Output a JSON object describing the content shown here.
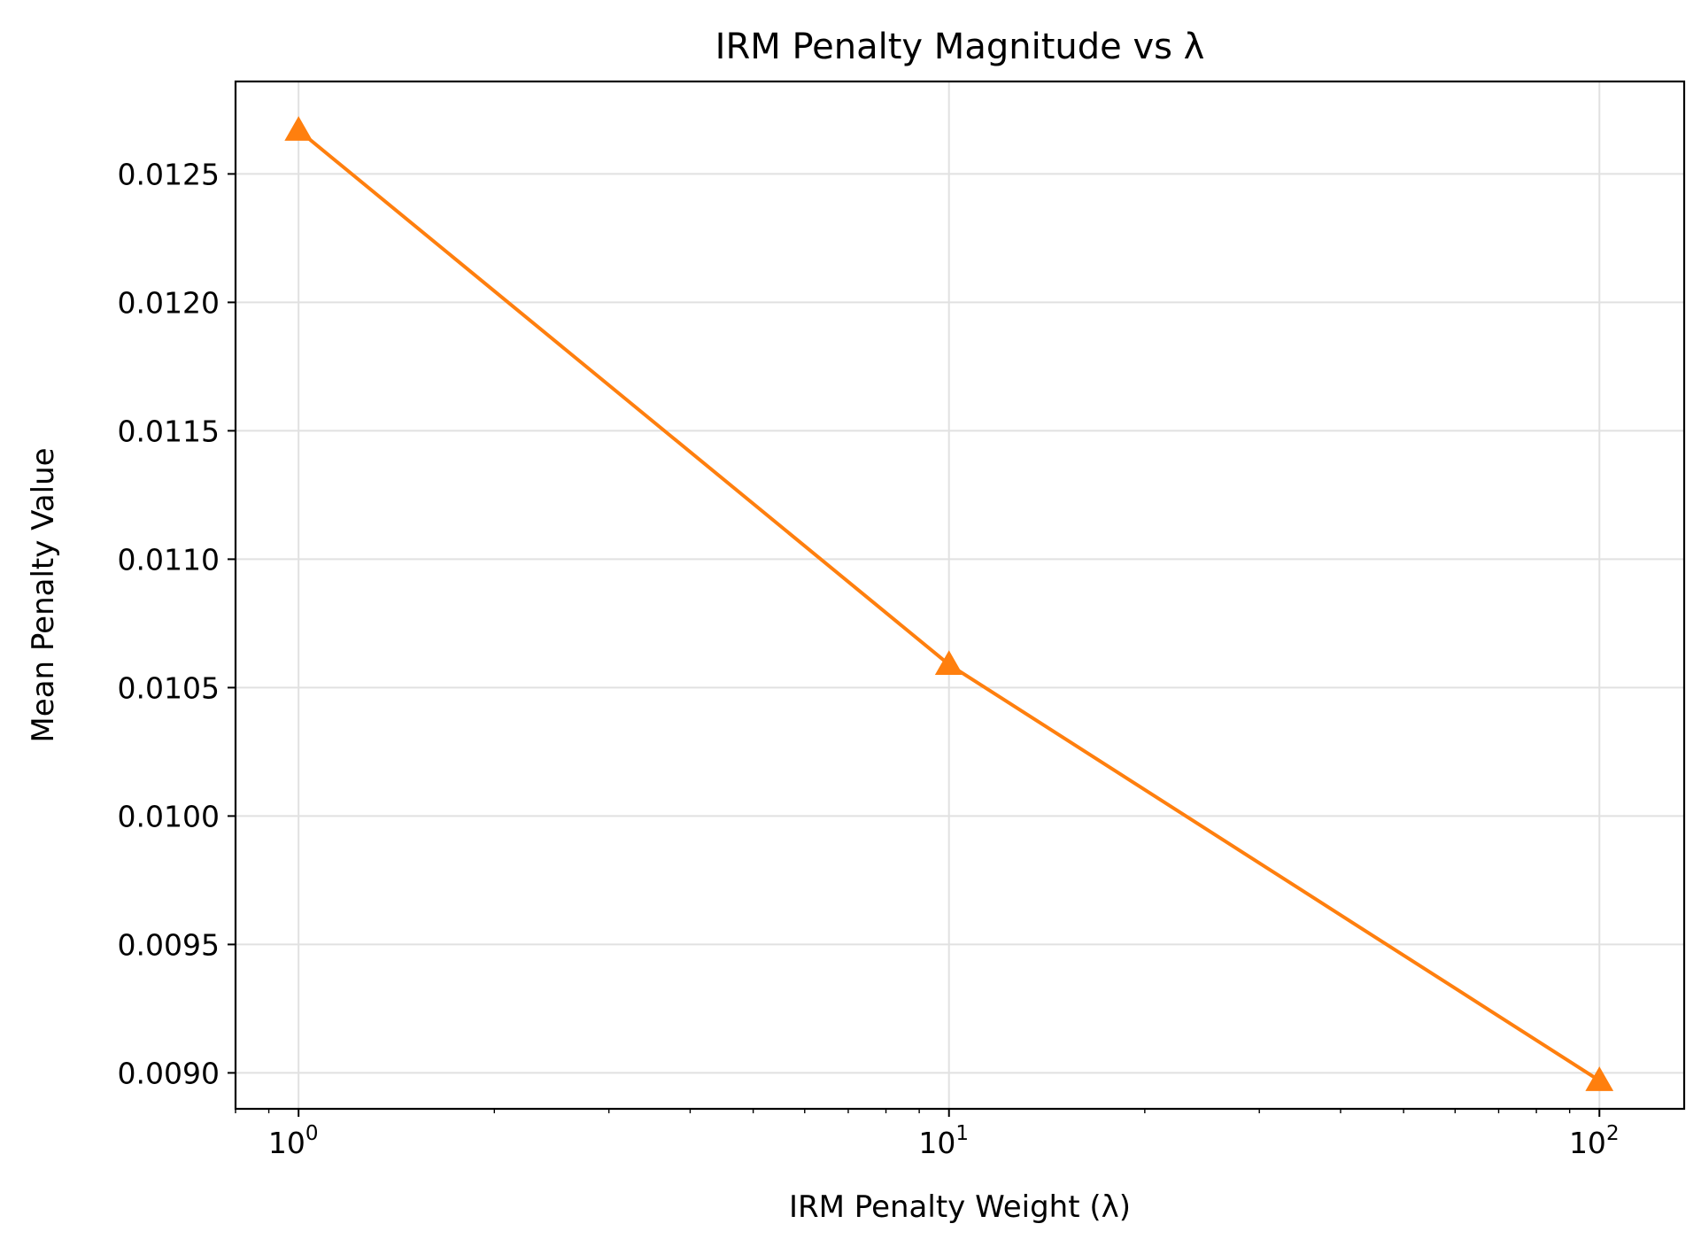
{
  "chart_data": {
    "type": "line",
    "title": "IRM Penalty Magnitude vs λ",
    "xlabel": "IRM Penalty Weight (λ)",
    "ylabel": "Mean Penalty Value",
    "xscale": "log",
    "xlim": [
      0.8,
      135
    ],
    "ylim": [
      0.00886,
      0.01286
    ],
    "grid": true,
    "x_ticks": [
      {
        "value": 1,
        "base": "10",
        "exp": "0"
      },
      {
        "value": 10,
        "base": "10",
        "exp": "1"
      },
      {
        "value": 100,
        "base": "10",
        "exp": "2"
      }
    ],
    "y_ticks": [
      {
        "value": 0.009,
        "label": "0.0090"
      },
      {
        "value": 0.0095,
        "label": "0.0095"
      },
      {
        "value": 0.01,
        "label": "0.0100"
      },
      {
        "value": 0.0105,
        "label": "0.0105"
      },
      {
        "value": 0.011,
        "label": "0.0110"
      },
      {
        "value": 0.0115,
        "label": "0.0115"
      },
      {
        "value": 0.012,
        "label": "0.0120"
      },
      {
        "value": 0.0125,
        "label": "0.0125"
      }
    ],
    "series": [
      {
        "name": "Mean Penalty",
        "color": "#ff7f0e",
        "marker": "triangle-up",
        "x": [
          1,
          10,
          100
        ],
        "y": [
          0.01267,
          0.01059,
          0.00897
        ]
      }
    ]
  }
}
